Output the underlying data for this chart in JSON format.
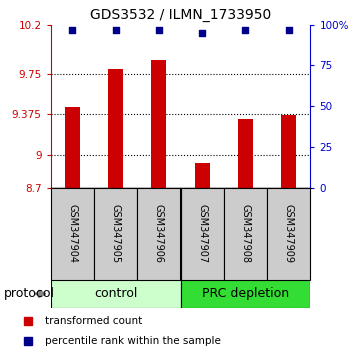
{
  "title": "GDS3532 / ILMN_1733950",
  "samples": [
    "GSM347904",
    "GSM347905",
    "GSM347906",
    "GSM347907",
    "GSM347908",
    "GSM347909"
  ],
  "bar_values": [
    9.44,
    9.79,
    9.88,
    8.93,
    9.33,
    9.37
  ],
  "percentile_values": [
    97,
    97,
    97,
    95,
    97,
    97
  ],
  "ylim_left": [
    8.7,
    10.2
  ],
  "ylim_right": [
    0,
    100
  ],
  "yticks_left": [
    8.7,
    9.0,
    9.375,
    9.75,
    10.2
  ],
  "yticks_right": [
    0,
    25,
    50,
    75,
    100
  ],
  "ytick_labels_left": [
    "8.7",
    "9",
    "9.375",
    "9.75",
    "10.2"
  ],
  "ytick_labels_right": [
    "0",
    "25",
    "50",
    "75",
    "100%"
  ],
  "bar_color": "#cc0000",
  "dot_color": "#00008b",
  "group1_color": "#ccffcc",
  "group2_color": "#33dd33",
  "group1_label": "control",
  "group2_label": "PRC depletion",
  "protocol_label": "protocol",
  "legend_bar_label": "transformed count",
  "legend_dot_label": "percentile rank within the sample"
}
